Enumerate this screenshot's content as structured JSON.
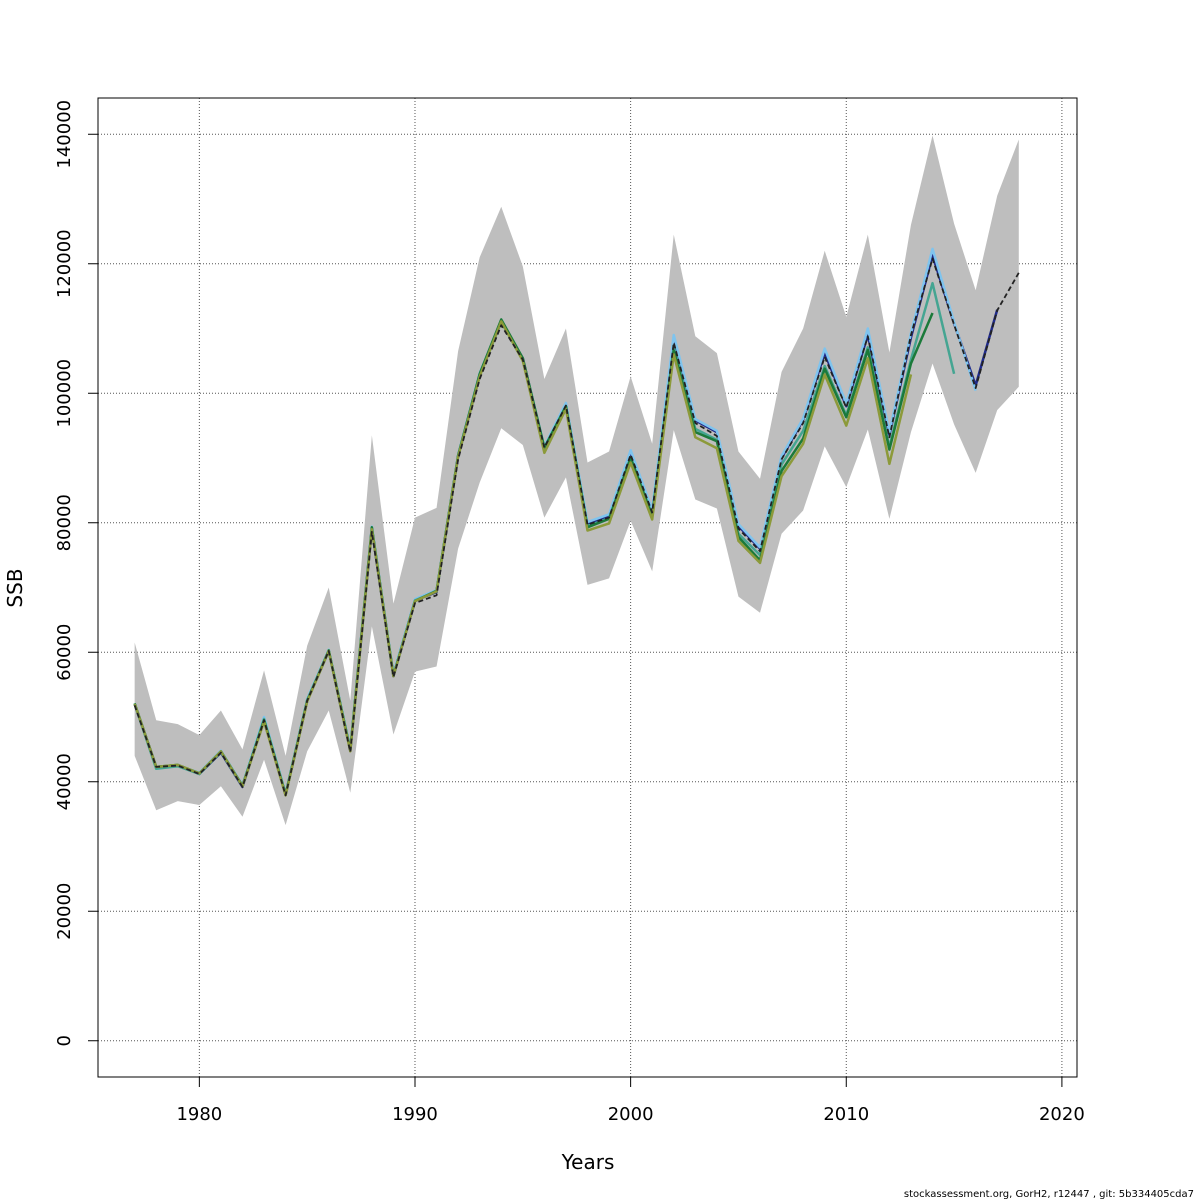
{
  "chart_data": {
    "type": "line",
    "xlabel": "Years",
    "ylabel": "SSB",
    "xlim": [
      1975.3,
      2020.7
    ],
    "ylim": [
      -5600,
      145600
    ],
    "xticks": [
      1980,
      1990,
      2000,
      2010,
      2020
    ],
    "yticks": [
      0,
      20000,
      40000,
      60000,
      80000,
      100000,
      120000,
      140000
    ],
    "xtick_labels": [
      "1980",
      "1990",
      "2000",
      "2010",
      "2020"
    ],
    "ytick_labels": [
      "0",
      "20000",
      "40000",
      "60000",
      "80000",
      "100000",
      "120000",
      "140000"
    ],
    "grid": true,
    "credit": "stockassessment.org, GorH2, r12447 , git: 5b334405cda7",
    "confidence_band": {
      "color": "#bebebe",
      "x": [
        1977,
        1978,
        1979,
        1980,
        1981,
        1982,
        1983,
        1984,
        1985,
        1986,
        1987,
        1988,
        1989,
        1990,
        1991,
        1992,
        1993,
        1994,
        1995,
        1996,
        1997,
        1998,
        1999,
        2000,
        2001,
        2002,
        2003,
        2004,
        2005,
        2006,
        2007,
        2008,
        2009,
        2010,
        2011,
        2012,
        2013,
        2014,
        2015,
        2016,
        2017,
        2018
      ],
      "upper": [
        61500,
        49500,
        48900,
        47200,
        51000,
        45000,
        57200,
        44000,
        61000,
        70000,
        52500,
        93500,
        67500,
        80800,
        82300,
        106500,
        121000,
        128800,
        119600,
        102200,
        110000,
        89300,
        91000,
        102600,
        92200,
        124500,
        108800,
        106200,
        91000,
        86800,
        103300,
        110000,
        122000,
        111800,
        124500,
        106300,
        126000,
        139800,
        126200,
        115900,
        130500,
        139200
      ],
      "lower": [
        44000,
        35600,
        37000,
        36400,
        39300,
        34600,
        43400,
        33300,
        44700,
        51000,
        38300,
        64000,
        47300,
        57000,
        57800,
        76000,
        86200,
        94600,
        92000,
        80800,
        87000,
        70400,
        71400,
        80300,
        72500,
        94300,
        83600,
        82200,
        68600,
        66100,
        78300,
        81900,
        91800,
        85500,
        94400,
        80600,
        94000,
        104600,
        95200,
        87700,
        97400,
        101000
      ]
    },
    "series": [
      {
        "color": "#1f2a8a",
        "width": 2.5,
        "dashed": false,
        "x": [
          1977,
          1978,
          1979,
          1980,
          1981,
          1982,
          1983,
          1984,
          1985,
          1986,
          1987,
          1988,
          1989,
          1990,
          1991,
          1992,
          1993,
          1994,
          1995,
          1996,
          1997,
          1998,
          1999,
          2000,
          2001,
          2002,
          2003,
          2004,
          2005,
          2006,
          2007,
          2008,
          2009,
          2010,
          2011,
          2012,
          2013,
          2014,
          2015,
          2016,
          2017
        ],
        "values": [
          52000,
          42300,
          42500,
          41200,
          44500,
          39200,
          49600,
          38000,
          52500,
          60200,
          44800,
          79000,
          56300,
          68000,
          69300,
          90300,
          102800,
          111000,
          105400,
          91500,
          98300,
          79800,
          81000,
          90700,
          81700,
          108200,
          95800,
          94000,
          79500,
          76000,
          90000,
          95900,
          106200,
          98000,
          109000,
          93600,
          108600,
          121300,
          110800,
          101200,
          112900
        ]
      },
      {
        "color": "#7fc4ee",
        "width": 2.5,
        "dashed": false,
        "x": [
          1977,
          1978,
          1979,
          1980,
          1981,
          1982,
          1983,
          1984,
          1985,
          1986,
          1987,
          1988,
          1989,
          1990,
          1991,
          1992,
          1993,
          1994,
          1995,
          1996,
          1997,
          1998,
          1999,
          2000,
          2001,
          2002,
          2003,
          2004,
          2005,
          2006,
          2007,
          2008,
          2009,
          2010,
          2011,
          2012,
          2013,
          2014,
          2015,
          2016
        ],
        "values": [
          52000,
          42000,
          42500,
          41400,
          44800,
          39500,
          50000,
          38200,
          52800,
          60400,
          45200,
          79400,
          56700,
          68200,
          69600,
          90500,
          103100,
          111200,
          105200,
          91800,
          98500,
          80100,
          81300,
          91200,
          82000,
          109000,
          96000,
          94200,
          79800,
          76200,
          90300,
          96100,
          106900,
          98400,
          110000,
          94000,
          109300,
          122300,
          111000,
          100400
        ]
      },
      {
        "color": "#45a592",
        "width": 2.5,
        "dashed": false,
        "x": [
          1977,
          1978,
          1979,
          1980,
          1981,
          1982,
          1983,
          1984,
          1985,
          1986,
          1987,
          1988,
          1989,
          1990,
          1991,
          1992,
          1993,
          1994,
          1995,
          1996,
          1997,
          1998,
          1999,
          2000,
          2001,
          2002,
          2003,
          2004,
          2005,
          2006,
          2007,
          2008,
          2009,
          2010,
          2011,
          2012,
          2013,
          2014,
          2015
        ],
        "values": [
          52000,
          42000,
          42400,
          41200,
          44600,
          39300,
          49700,
          38100,
          52600,
          60200,
          45000,
          79200,
          56400,
          68000,
          69400,
          90300,
          102700,
          111000,
          105100,
          91300,
          98000,
          79500,
          80700,
          90100,
          81200,
          107200,
          94500,
          92800,
          78300,
          75000,
          89000,
          94200,
          104200,
          96600,
          107100,
          91700,
          105200,
          117000,
          103000
        ]
      },
      {
        "color": "#1b7a3a",
        "width": 2.5,
        "dashed": false,
        "x": [
          1977,
          1978,
          1979,
          1980,
          1981,
          1982,
          1983,
          1984,
          1985,
          1986,
          1987,
          1988,
          1989,
          1990,
          1991,
          1992,
          1993,
          1994,
          1995,
          1996,
          1997,
          1998,
          1999,
          2000,
          2001,
          2002,
          2003,
          2004,
          2005,
          2006,
          2007,
          2008,
          2009,
          2010,
          2011,
          2012,
          2013,
          2014
        ],
        "values": [
          52100,
          42300,
          42600,
          41300,
          44700,
          39400,
          49500,
          38000,
          52500,
          60300,
          44900,
          79300,
          56400,
          67900,
          69500,
          90400,
          103000,
          111400,
          105400,
          91600,
          98000,
          79300,
          80600,
          90000,
          81000,
          106600,
          94000,
          92600,
          77800,
          74200,
          88000,
          93000,
          103800,
          96300,
          106700,
          91300,
          104600,
          112400
        ]
      },
      {
        "color": "#8c9a3a",
        "width": 2.5,
        "dashed": false,
        "x": [
          1977,
          1978,
          1979,
          1980,
          1981,
          1982,
          1983,
          1984,
          1985,
          1986,
          1987,
          1988,
          1989,
          1990,
          1991,
          1992,
          1993,
          1994,
          1995,
          1996,
          1997,
          1998,
          1999,
          2000,
          2001,
          2002,
          2003,
          2004,
          2005,
          2006,
          2007,
          2008,
          2009,
          2010,
          2011,
          2012,
          2013
        ],
        "values": [
          52000,
          42300,
          42600,
          41300,
          44700,
          39300,
          49300,
          37900,
          52400,
          60200,
          44700,
          79000,
          56300,
          67900,
          69400,
          90200,
          102600,
          111100,
          105000,
          90800,
          97600,
          78800,
          79900,
          89300,
          80500,
          106000,
          93200,
          91500,
          77200,
          73800,
          87200,
          92200,
          102900,
          95000,
          105400,
          89100,
          102900
        ]
      },
      {
        "color": "#222222",
        "width": 1.8,
        "dashed": true,
        "x": [
          1977,
          1978,
          1979,
          1980,
          1981,
          1982,
          1983,
          1984,
          1985,
          1986,
          1987,
          1988,
          1989,
          1990,
          1991,
          1992,
          1993,
          1994,
          1995,
          1996,
          1997,
          1998,
          1999,
          2000,
          2001,
          2002,
          2003,
          2004,
          2005,
          2006,
          2007,
          2008,
          2009,
          2010,
          2011,
          2012,
          2013,
          2014,
          2015,
          2016,
          2017,
          2018
        ],
        "values": [
          51800,
          42300,
          42500,
          41200,
          44500,
          39200,
          49500,
          37900,
          52500,
          60200,
          44600,
          78600,
          56200,
          67600,
          68800,
          89800,
          102200,
          110500,
          105200,
          91600,
          98100,
          79700,
          80800,
          90500,
          81600,
          107800,
          95400,
          93400,
          79100,
          75600,
          89800,
          95400,
          105600,
          97800,
          108800,
          93200,
          109000,
          120800,
          110600,
          100800,
          112800,
          118600
        ]
      }
    ]
  }
}
